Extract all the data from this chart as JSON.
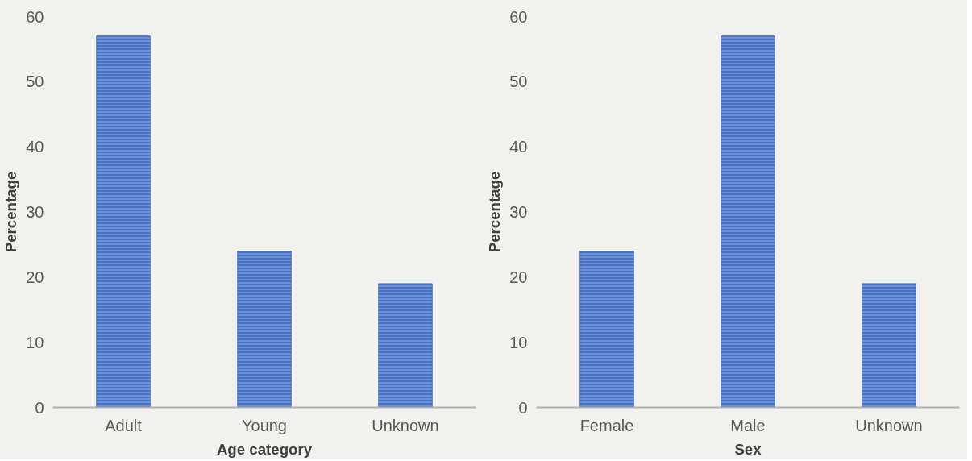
{
  "chart_data": [
    {
      "type": "bar",
      "categories": [
        "Adult",
        "Young",
        "Unknown"
      ],
      "values": [
        57,
        24,
        19
      ],
      "color": "#4a72c4",
      "xlabel": "Age category",
      "ylabel": "Percentage",
      "ylim": [
        0,
        60
      ],
      "yticks": [
        0,
        10,
        20,
        30,
        40,
        50,
        60
      ]
    },
    {
      "type": "bar",
      "categories": [
        "Female",
        "Male",
        "Unknown"
      ],
      "values": [
        24,
        57,
        19
      ],
      "color": "#4a72c4",
      "xlabel": "Sex",
      "ylabel": "Percentage",
      "ylim": [
        0,
        60
      ],
      "yticks": [
        0,
        10,
        20,
        30,
        40,
        50,
        60
      ]
    }
  ]
}
